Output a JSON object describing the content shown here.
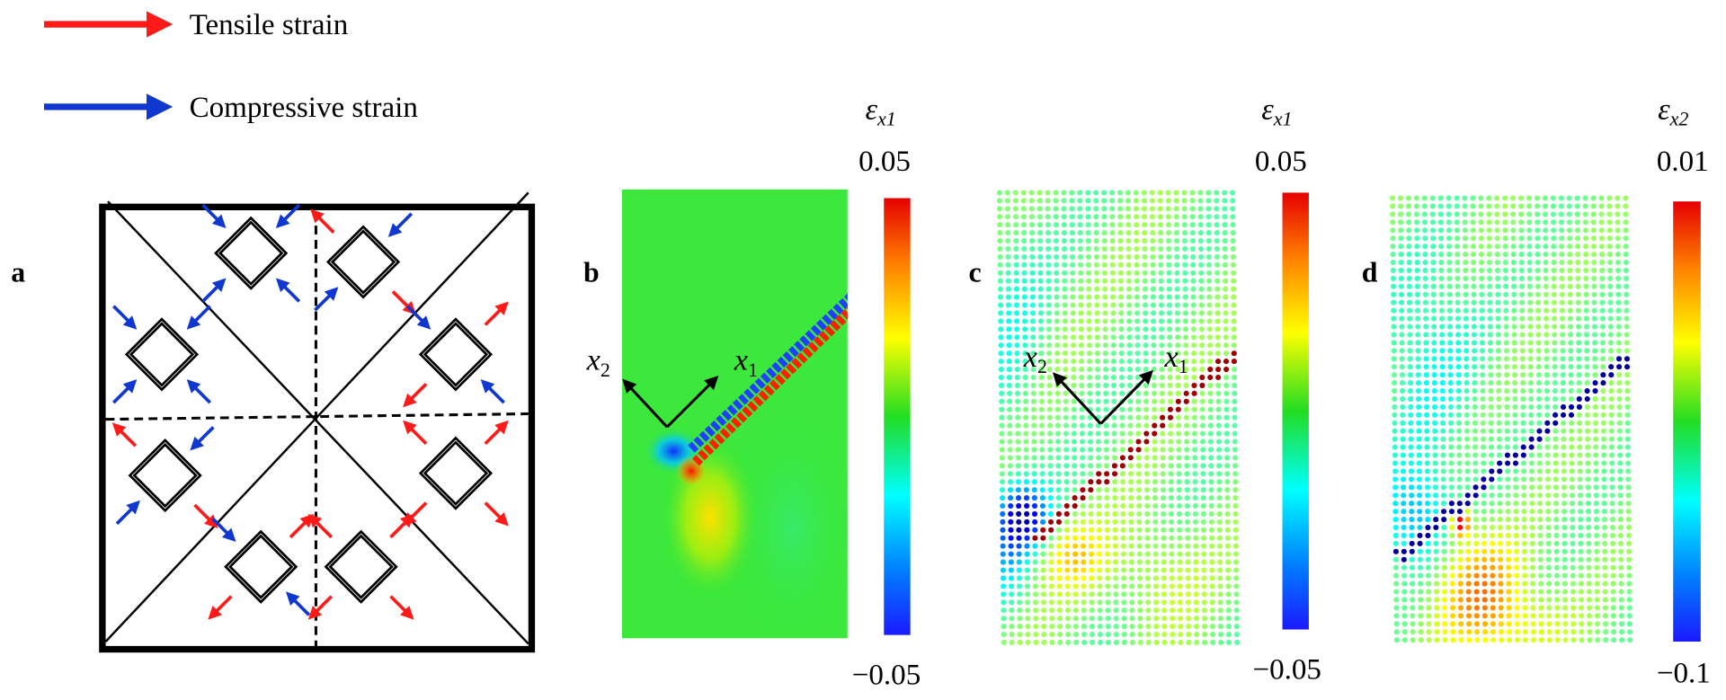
{
  "legend": {
    "tensile": {
      "label": "Tensile strain",
      "color": "#ff1a1a"
    },
    "compressive": {
      "label": "Compressive strain",
      "color": "#1038d0"
    }
  },
  "panels": {
    "a": {
      "label": "a",
      "cells": [
        {
          "nw": "in-compressive",
          "ne": "in-compressive",
          "sw": "in-compressive",
          "se": "in-compressive"
        },
        {
          "nw": "out-tensile",
          "ne": "in-compressive",
          "sw": "in-compressive",
          "se": "out-tensile"
        },
        {
          "nw": "in-compressive",
          "ne": "in-compressive",
          "sw": "in-compressive",
          "se": "in-compressive"
        },
        {
          "nw": "in-compressive",
          "ne": "out-tensile",
          "sw": "out-tensile",
          "se": "in-compressive"
        },
        {
          "nw": "out-tensile",
          "ne": "in-compressive",
          "sw": "in-compressive",
          "se": "out-tensile"
        },
        {
          "nw": "out-tensile",
          "ne": "out-tensile",
          "sw": "out-tensile",
          "se": "out-tensile"
        },
        {
          "nw": "in-compressive",
          "ne": "out-tensile",
          "sw": "out-tensile",
          "se": "in-compressive"
        },
        {
          "nw": "out-tensile",
          "ne": "out-tensile",
          "sw": "out-tensile",
          "se": "out-tensile"
        }
      ]
    },
    "b": {
      "label": "b",
      "axis_x1": "x",
      "axis_x1_sub": "1",
      "axis_x2": "x",
      "axis_x2_sub": "2",
      "colorbar": {
        "symbol": "ε",
        "sub": "x1",
        "max": "0.05",
        "min": "−0.05"
      }
    },
    "c": {
      "label": "c",
      "axis_x1": "x",
      "axis_x1_sub": "1",
      "axis_x2": "x",
      "axis_x2_sub": "2",
      "colorbar": {
        "symbol": "ε",
        "sub": "x1",
        "max": "0.05",
        "min": "−0.05"
      }
    },
    "d": {
      "label": "d",
      "colorbar": {
        "symbol": "ε",
        "sub": "x2",
        "max": "0.01",
        "min": "−0.1"
      }
    }
  },
  "colormap": "jet"
}
